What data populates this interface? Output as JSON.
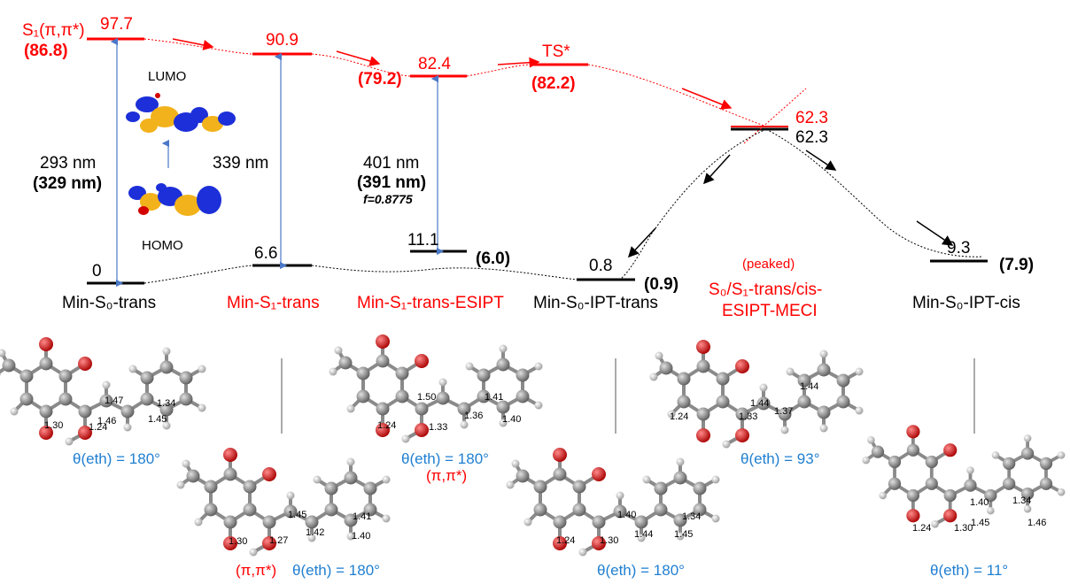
{
  "colors": {
    "excited": "#ff0000",
    "ground": "#000000",
    "angle": "#1f7fd1",
    "transition_arrow": "#4a78c8",
    "lumo_homo_lobe_pos": "#f2b21b",
    "lumo_homo_lobe_neg": "#1c2fd8",
    "carbon": "#8c8c8c",
    "oxygen": "#d40000",
    "hydrogen": "#e6e6e6"
  },
  "energy_diagram": {
    "s1_label": "S₁(π,π*)",
    "mins0trans": {
      "s1_energy": "97.7",
      "s1_energy_bold": "(86.8)",
      "s0_energy": "0",
      "excitation": "293 nm",
      "excitation_bold": "(329 nm)",
      "state_label": "Min-S₀-trans"
    },
    "mins1trans": {
      "s1_energy": "90.9",
      "s0_energy": "6.6",
      "excitation": "339 nm",
      "state_label": "Min-S₁-trans"
    },
    "mins1esipt": {
      "s1_energy": "82.4",
      "s1_energy_bold": "(79.2)",
      "s0_energy": "11.1",
      "s0_energy_bold": "(6.0)",
      "excitation": "401 nm",
      "excitation_bold": "(391 nm)",
      "oscillator": "f=0.8775",
      "state_label": "Min-S₁-trans-ESIPT"
    },
    "ts": {
      "label": "TS*",
      "energy_bold": "(82.2)"
    },
    "mins0iptrans": {
      "energy": "0.8",
      "energy_bold": "(0.9)",
      "state_label": "Min-S₀-IPT-trans"
    },
    "meci": {
      "energy_s1": "62.3",
      "energy_s0": "62.3",
      "peaked": "(peaked)",
      "label_line1": "S₀/S₁-trans/cis-",
      "label_line2": "ESIPT-MECI"
    },
    "mins0iptcis": {
      "energy": "9.3",
      "energy_bold": "(7.9)",
      "state_label": "Min-S₀-IPT-cis"
    },
    "orbitals": {
      "lumo": "LUMO",
      "homo": "HOMO"
    }
  },
  "structures": {
    "s1": {
      "angle": "θ(eth) = 180°",
      "bonds": [
        "1.47",
        "1.46",
        "1.34",
        "1.45",
        "1.30",
        "1.24"
      ]
    },
    "s2": {
      "angle": "θ(eth) = 180°",
      "pipi": "(π,π*)",
      "bonds": [
        "1.45",
        "1.42",
        "1.41",
        "1.40",
        "1.30",
        "1.27"
      ]
    },
    "s3": {
      "angle": "θ(eth) = 180°",
      "pipi": "(π,π*)",
      "bonds": [
        "1.50",
        "1.41",
        "1.36",
        "1.40",
        "1.24",
        "1.33"
      ]
    },
    "s4": {
      "angle": "θ(eth) = 180°",
      "bonds": [
        "1.40",
        "1.34",
        "1.44",
        "1.45",
        "1.24",
        "1.30"
      ]
    },
    "s5": {
      "angle": "θ(eth) = 93°",
      "bonds": [
        "1.44",
        "1.44",
        "1.37",
        "1.24",
        "1.33"
      ]
    },
    "s6": {
      "angle": "θ(eth) = 11°",
      "bonds": [
        "1.34",
        "1.40",
        "1.45",
        "1.46",
        "1.24",
        "1.30"
      ]
    }
  }
}
